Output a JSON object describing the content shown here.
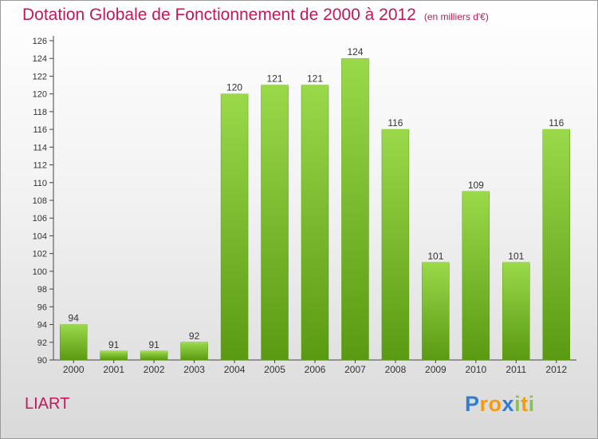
{
  "title": "Dotation Globale de Fonctionnement de 2000 à 2012",
  "subtitle": "(en milliers d'€)",
  "commune": "LIART",
  "logo": {
    "letters": [
      "P",
      "r",
      "o",
      "x",
      "i",
      "t",
      "i"
    ],
    "colors": [
      "#2e7dd1",
      "#f39c12",
      "#f39c12",
      "#2e7dd1",
      "#8bc34a",
      "#f39c12",
      "#8bc34a"
    ]
  },
  "colors": {
    "bar": "#7cbf2a",
    "bar_light": "#9ad94a",
    "bar_dark": "#5a9a12",
    "title": "#c2185b"
  },
  "chart_data": {
    "type": "bar",
    "categories": [
      "2000",
      "2001",
      "2002",
      "2003",
      "2004",
      "2005",
      "2006",
      "2007",
      "2008",
      "2009",
      "2010",
      "2011",
      "2012"
    ],
    "values": [
      94,
      91,
      91,
      92,
      120,
      121,
      121,
      124,
      116,
      101,
      109,
      101,
      116
    ],
    "data_labels": [
      "94",
      "91",
      "91",
      "92",
      "120",
      "121",
      "121",
      "124",
      "116",
      "101",
      "109",
      "101",
      "116"
    ],
    "yticks": [
      90,
      92,
      94,
      96,
      98,
      100,
      102,
      104,
      106,
      108,
      110,
      112,
      114,
      116,
      118,
      120,
      122,
      124,
      126
    ],
    "ylim": [
      90,
      126
    ],
    "grid": false
  }
}
